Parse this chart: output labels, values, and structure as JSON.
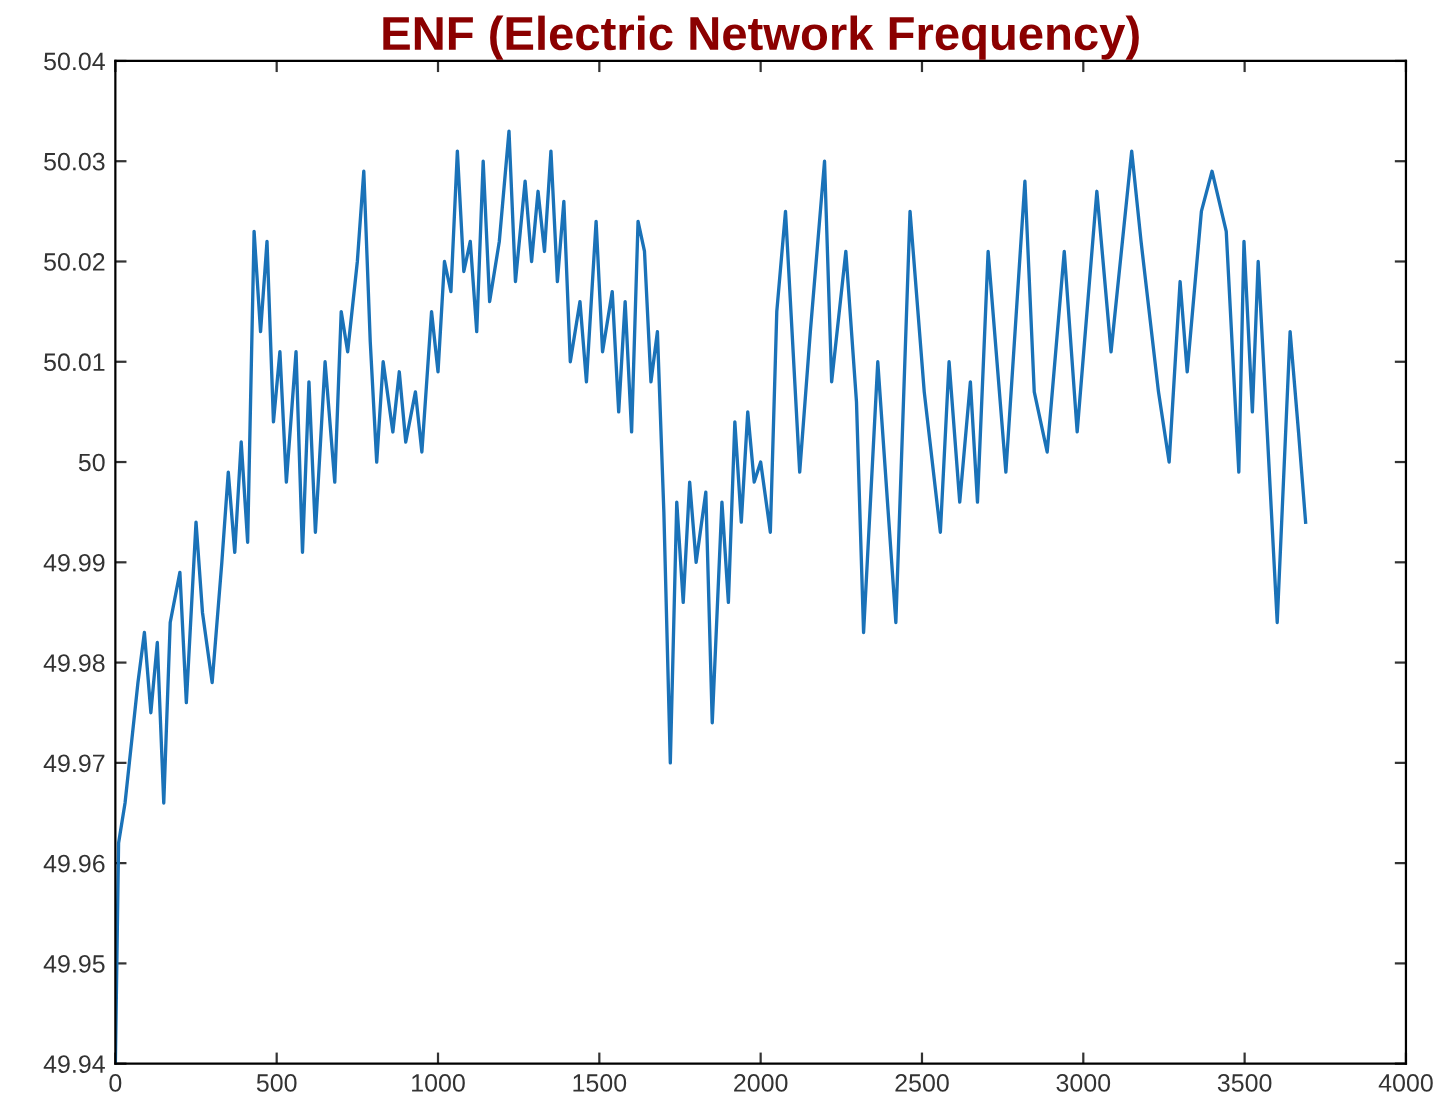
{
  "chart_data": {
    "type": "line",
    "title": "ENF (Electric Network Frequency)",
    "xlim": [
      0,
      4000
    ],
    "xticks": [
      0,
      500,
      1000,
      1500,
      2000,
      2500,
      3000,
      3500,
      4000
    ],
    "ylim": [
      49.94,
      50.04
    ],
    "yticks": [
      {
        "value": 49.94,
        "label": "49.94"
      },
      {
        "value": 49.95,
        "label": "49.95"
      },
      {
        "value": 49.96,
        "label": "49.96"
      },
      {
        "value": 49.97,
        "label": "49.97"
      },
      {
        "value": 49.98,
        "label": "49.98"
      },
      {
        "value": 49.99,
        "label": "49.99"
      },
      {
        "value": 50,
        "label": "50"
      },
      {
        "value": 50.01,
        "label": "50.01"
      },
      {
        "value": 50.02,
        "label": "50.02"
      },
      {
        "value": 50.03,
        "label": "50.03"
      },
      {
        "value": 50.04,
        "label": "50.04"
      }
    ],
    "grid": false,
    "marker": "none",
    "line_style": "solid",
    "series": [
      {
        "color": "#1a72b8",
        "x": [
          0,
          10,
          30,
          50,
          70,
          90,
          110,
          130,
          150,
          170,
          200,
          220,
          250,
          270,
          300,
          330,
          350,
          370,
          390,
          410,
          430,
          450,
          470,
          490,
          510,
          530,
          560,
          580,
          600,
          620,
          650,
          680,
          700,
          720,
          750,
          770,
          790,
          810,
          830,
          860,
          880,
          900,
          930,
          950,
          980,
          1000,
          1020,
          1040,
          1060,
          1080,
          1100,
          1120,
          1140,
          1160,
          1190,
          1220,
          1240,
          1270,
          1290,
          1310,
          1330,
          1350,
          1370,
          1390,
          1410,
          1440,
          1460,
          1490,
          1510,
          1540,
          1560,
          1580,
          1600,
          1620,
          1640,
          1660,
          1680,
          1700,
          1720,
          1740,
          1760,
          1780,
          1800,
          1830,
          1850,
          1880,
          1900,
          1920,
          1940,
          1960,
          1980,
          2000,
          2030,
          2050,
          2077,
          2121,
          2154,
          2198,
          2220,
          2264,
          2297,
          2319,
          2363,
          2419,
          2463,
          2507,
          2557,
          2584,
          2617,
          2650,
          2672,
          2705,
          2760,
          2819,
          2848,
          2888,
          2941,
          2981,
          3042,
          3086,
          3150,
          3179,
          3233,
          3266,
          3300,
          3322,
          3366,
          3399,
          3443,
          3482,
          3498,
          3524,
          3542,
          3570,
          3601,
          3641,
          3667,
          3689
        ],
        "values": [
          49.94,
          49.962,
          49.966,
          49.972,
          49.978,
          49.983,
          49.975,
          49.982,
          49.966,
          49.984,
          49.989,
          49.976,
          49.994,
          49.985,
          49.978,
          49.99,
          49.999,
          49.991,
          50.002,
          49.992,
          50.023,
          50.013,
          50.022,
          50.004,
          50.011,
          49.998,
          50.011,
          49.991,
          50.008,
          49.993,
          50.01,
          49.998,
          50.015,
          50.011,
          50.02,
          50.029,
          50.012,
          50.0,
          50.01,
          50.003,
          50.009,
          50.002,
          50.007,
          50.001,
          50.015,
          50.009,
          50.02,
          50.017,
          50.031,
          50.019,
          50.022,
          50.013,
          50.03,
          50.016,
          50.022,
          50.033,
          50.018,
          50.028,
          50.02,
          50.027,
          50.021,
          50.031,
          50.018,
          50.026,
          50.01,
          50.016,
          50.008,
          50.024,
          50.011,
          50.017,
          50.005,
          50.016,
          50.003,
          50.024,
          50.021,
          50.008,
          50.013,
          49.995,
          49.97,
          49.996,
          49.986,
          49.998,
          49.99,
          49.997,
          49.974,
          49.996,
          49.986,
          50.004,
          49.994,
          50.005,
          49.998,
          50.0,
          49.993,
          50.015,
          50.025,
          49.999,
          50.013,
          50.03,
          50.008,
          50.021,
          50.006,
          49.983,
          50.01,
          49.984,
          50.025,
          50.007,
          49.993,
          50.01,
          49.996,
          50.008,
          49.996,
          50.021,
          49.999,
          50.028,
          50.007,
          50.001,
          50.021,
          50.003,
          50.027,
          50.011,
          50.031,
          50.022,
          50.007,
          50.0,
          50.018,
          50.009,
          50.025,
          50.029,
          50.023,
          49.999,
          50.022,
          50.005,
          50.02,
          50.003,
          49.984,
          50.013,
          50.003,
          49.994
        ]
      }
    ]
  }
}
